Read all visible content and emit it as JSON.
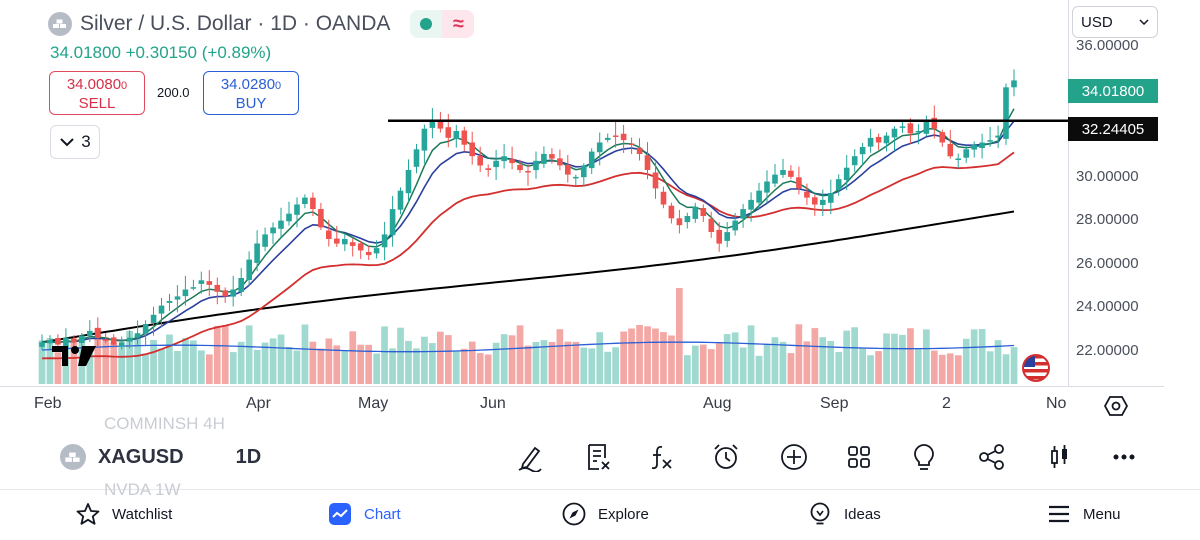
{
  "header": {
    "title": "Silver / U.S. Dollar · 1D · OANDA",
    "status_icon": "market-open-dot",
    "indicator_icon": "wave-icon",
    "price_line": "34.01800  +0.30150 (+0.89%)",
    "sell": {
      "price": "34.0080",
      "superscript": "0",
      "label": "SELL"
    },
    "buy": {
      "price": "34.0280",
      "superscript": "0",
      "label": "BUY"
    },
    "spread": "200.0",
    "collapse_count": "3"
  },
  "price_axis": {
    "currency": "USD",
    "ticks": [
      "36.00000",
      "30.00000",
      "28.00000",
      "26.00000",
      "24.00000",
      "22.00000"
    ],
    "last_price_tag": "34.01800",
    "line_tag": "32.24405"
  },
  "time_axis": {
    "labels": [
      "Feb",
      "Apr",
      "May",
      "Jun",
      "Aug",
      "Sep",
      "2",
      "No"
    ]
  },
  "colors": {
    "up": "#26a69a",
    "down": "#ef5350",
    "ema_fast": "#1b7a5a",
    "ema_mid": "#2a3f9e",
    "ema_slow": "#d32f2f",
    "ema_long": "#000000",
    "volume_ma": "#2a5fd6",
    "accent": "#2962ff"
  },
  "chart_data": {
    "type": "candlestick",
    "symbol": "XAGUSD",
    "interval": "1D",
    "ylim": [
      20.7,
      37.5
    ],
    "horizontal_line": 32.24405,
    "last_price": 34.018,
    "closes": [
      22.6,
      22.7,
      22.5,
      22.8,
      22.6,
      22.9,
      23.1,
      22.8,
      22.7,
      22.5,
      22.6,
      22.8,
      23.0,
      23.4,
      23.8,
      24.2,
      24.4,
      24.6,
      24.9,
      25.0,
      25.3,
      25.1,
      24.8,
      24.6,
      24.9,
      25.4,
      26.2,
      26.9,
      27.3,
      27.6,
      27.9,
      28.2,
      28.6,
      28.9,
      28.4,
      27.6,
      27.1,
      26.9,
      27.1,
      26.8,
      26.6,
      26.4,
      26.7,
      27.3,
      28.4,
      29.2,
      30.1,
      31.0,
      31.9,
      32.3,
      31.9,
      31.5,
      31.8,
      31.2,
      30.7,
      30.3,
      30.1,
      30.5,
      30.7,
      30.4,
      30.1,
      30.0,
      30.5,
      30.8,
      30.6,
      30.3,
      29.9,
      29.8,
      30.3,
      30.9,
      31.3,
      31.5,
      31.6,
      31.4,
      31.2,
      30.8,
      30.1,
      29.3,
      28.6,
      28.0,
      27.7,
      28.1,
      28.5,
      28.1,
      27.4,
      26.9,
      27.4,
      27.9,
      28.4,
      28.8,
      29.2,
      29.6,
      29.9,
      30.1,
      29.8,
      29.3,
      28.9,
      28.6,
      28.8,
      29.1,
      29.7,
      30.2,
      30.7,
      31.1,
      31.5,
      31.3,
      31.6,
      31.9,
      32.0,
      31.7,
      31.8,
      32.3,
      31.9,
      31.3,
      30.7,
      30.6,
      31.0,
      31.2,
      31.3,
      31.4,
      31.6,
      33.7,
      34.0
    ]
  },
  "logo_mark": "tradingview-logo",
  "flag_icon": "us-flag-icon",
  "symbol_bar": {
    "ghost_top": "COMMINSH  4H",
    "symbol": "XAGUSD",
    "timeframe": "1D",
    "ghost_bottom": "NVDA  1W",
    "tools": [
      "draw-icon",
      "clear-drawings-icon",
      "indicators-icon",
      "alert-icon",
      "add-icon",
      "layouts-icon",
      "ideas-icon",
      "share-icon",
      "chart-type-icon",
      "more-icon"
    ]
  },
  "nav": {
    "watchlist": "Watchlist",
    "chart": "Chart",
    "explore": "Explore",
    "ideas": "Ideas",
    "menu": "Menu"
  }
}
